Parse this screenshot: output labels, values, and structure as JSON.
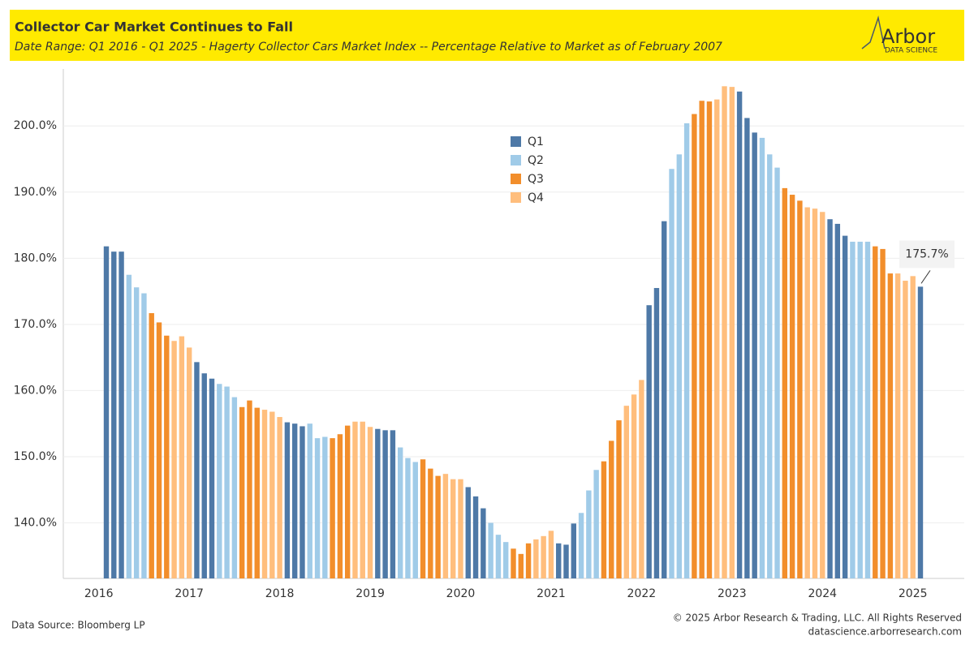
{
  "chart_data": {
    "type": "bar",
    "title": "Collector Car Market Continues to Fall",
    "subtitle": "Date Range: Q1 2016 - Q1 2025 - Hagerty Collector Cars Market Index -- Percentage Relative to Market as of February 2007",
    "categories": [
      "2016",
      null,
      null,
      null,
      null,
      null,
      null,
      null,
      null,
      null,
      null,
      null,
      "2017",
      null,
      null,
      null,
      null,
      null,
      null,
      null,
      null,
      null,
      null,
      null,
      "2018",
      null,
      null,
      null,
      null,
      null,
      null,
      null,
      null,
      null,
      null,
      null,
      "2019",
      null,
      null,
      null,
      null,
      null,
      null,
      null,
      null,
      null,
      null,
      null,
      "2020",
      null,
      null,
      null,
      null,
      null,
      null,
      null,
      null,
      null,
      null,
      null,
      "2021",
      null,
      null,
      null,
      null,
      null,
      null,
      null,
      null,
      null,
      null,
      null,
      "2022",
      null,
      null,
      null,
      null,
      null,
      null,
      null,
      null,
      null,
      null,
      null,
      "2023",
      null,
      null,
      null,
      null,
      null,
      null,
      null,
      null,
      null,
      null,
      null,
      "2024",
      null,
      null,
      null,
      null,
      null,
      null,
      null,
      null,
      null,
      null,
      null,
      "2025"
    ],
    "series": [
      {
        "name": "Q1",
        "color": "#4e79a7",
        "values": [
          181.8,
          181.0,
          181.0,
          null,
          null,
          null,
          null,
          null,
          null,
          null,
          null,
          null,
          164.3,
          162.6,
          161.8,
          null,
          null,
          null,
          null,
          null,
          null,
          null,
          null,
          null,
          155.2,
          155.0,
          154.6,
          null,
          null,
          null,
          null,
          null,
          null,
          null,
          null,
          null,
          154.2,
          154.0,
          154.0,
          null,
          null,
          null,
          null,
          null,
          null,
          null,
          null,
          null,
          145.4,
          144.0,
          142.2,
          null,
          null,
          null,
          null,
          null,
          null,
          null,
          null,
          null,
          136.9,
          136.7,
          139.9,
          null,
          null,
          null,
          null,
          null,
          null,
          null,
          null,
          null,
          172.9,
          175.5,
          185.6,
          null,
          null,
          null,
          null,
          null,
          null,
          null,
          null,
          null,
          205.2,
          201.2,
          199.0,
          null,
          null,
          null,
          null,
          null,
          null,
          null,
          null,
          null,
          185.9,
          185.2,
          183.4,
          null,
          null,
          null,
          null,
          null,
          null,
          null,
          null,
          null,
          175.7
        ],
        "value_labels": [
          null,
          null,
          null,
          null,
          null,
          null,
          null,
          null,
          null,
          null,
          null,
          null,
          null,
          null,
          null,
          null,
          null,
          null,
          null,
          null,
          null,
          null,
          null,
          null,
          null,
          null,
          null,
          null,
          null,
          null,
          null,
          null,
          null,
          null,
          null,
          null,
          null,
          null,
          null,
          null,
          null,
          null,
          null,
          null,
          null,
          null,
          null,
          null,
          null,
          null,
          null,
          null,
          null,
          null,
          null,
          null,
          null,
          null,
          null,
          null,
          null,
          null,
          null,
          null,
          null,
          null,
          null,
          null,
          null,
          null,
          null,
          null,
          null,
          null,
          null,
          null,
          null,
          null,
          null,
          null,
          null,
          null,
          null,
          null,
          null,
          null,
          null,
          null,
          null,
          null,
          null,
          null,
          null,
          null,
          null,
          null,
          null,
          null,
          null,
          null,
          null,
          null,
          null,
          null,
          null,
          null,
          null,
          null,
          "175.7%"
        ]
      },
      {
        "name": "Q2",
        "color": "#a0cbe8",
        "values": [
          null,
          null,
          null,
          177.5,
          175.6,
          174.7,
          null,
          null,
          null,
          null,
          null,
          null,
          null,
          null,
          null,
          161.0,
          160.6,
          159.0,
          null,
          null,
          null,
          null,
          null,
          null,
          null,
          null,
          null,
          155.0,
          152.8,
          153.0,
          null,
          null,
          null,
          null,
          null,
          null,
          null,
          null,
          null,
          151.4,
          149.8,
          149.2,
          null,
          null,
          null,
          null,
          null,
          null,
          null,
          null,
          null,
          140.0,
          138.2,
          137.1,
          null,
          null,
          null,
          null,
          null,
          null,
          null,
          null,
          null,
          141.5,
          144.9,
          148.0,
          null,
          null,
          null,
          null,
          null,
          null,
          null,
          null,
          null,
          193.5,
          195.7,
          200.4,
          null,
          null,
          null,
          null,
          null,
          null,
          null,
          null,
          null,
          198.2,
          195.7,
          193.7,
          null,
          null,
          null,
          null,
          null,
          null,
          null,
          null,
          null,
          182.5,
          182.5,
          182.5,
          null,
          null,
          null,
          null,
          null,
          null,
          null
        ]
      },
      {
        "name": "Q3",
        "color": "#f28e2b",
        "values": [
          null,
          null,
          null,
          null,
          null,
          null,
          171.7,
          170.3,
          168.3,
          null,
          null,
          null,
          null,
          null,
          null,
          null,
          null,
          null,
          157.5,
          158.5,
          157.4,
          null,
          null,
          null,
          null,
          null,
          null,
          null,
          null,
          null,
          152.8,
          153.4,
          154.7,
          null,
          null,
          null,
          null,
          null,
          null,
          null,
          null,
          null,
          149.6,
          148.2,
          147.1,
          null,
          null,
          null,
          null,
          null,
          null,
          null,
          null,
          null,
          136.1,
          135.3,
          136.9,
          null,
          null,
          null,
          null,
          null,
          null,
          null,
          null,
          null,
          149.3,
          152.4,
          155.5,
          null,
          null,
          null,
          null,
          null,
          null,
          null,
          null,
          null,
          201.8,
          203.8,
          203.7,
          null,
          null,
          null,
          null,
          null,
          null,
          null,
          null,
          null,
          190.6,
          189.6,
          188.7,
          null,
          null,
          null,
          null,
          null,
          null,
          null,
          null,
          null,
          181.8,
          181.4,
          177.7,
          null,
          null,
          null,
          null
        ]
      },
      {
        "name": "Q4",
        "color": "#ffbe7d",
        "values": [
          null,
          null,
          null,
          null,
          null,
          null,
          null,
          null,
          null,
          167.5,
          168.2,
          166.5,
          null,
          null,
          null,
          null,
          null,
          null,
          null,
          null,
          null,
          157.1,
          156.8,
          156.0,
          null,
          null,
          null,
          null,
          null,
          null,
          null,
          null,
          null,
          155.3,
          155.3,
          154.5,
          null,
          null,
          null,
          null,
          null,
          null,
          null,
          null,
          null,
          147.4,
          146.6,
          146.6,
          null,
          null,
          null,
          null,
          null,
          null,
          null,
          null,
          null,
          137.5,
          138.0,
          138.8,
          null,
          null,
          null,
          null,
          null,
          null,
          null,
          null,
          null,
          157.7,
          159.4,
          161.6,
          null,
          null,
          null,
          null,
          null,
          null,
          null,
          null,
          null,
          204.0,
          206.0,
          205.9,
          null,
          null,
          null,
          null,
          null,
          null,
          null,
          null,
          null,
          187.7,
          187.5,
          187.0,
          null,
          null,
          null,
          null,
          null,
          null,
          null,
          null,
          null,
          177.7,
          176.6,
          177.3,
          null
        ]
      }
    ],
    "ylim": [
      131.6,
      208
    ],
    "yticks": [
      {
        "value": 140,
        "label": "140.0%"
      },
      {
        "value": 150,
        "label": "150.0%"
      },
      {
        "value": 160,
        "label": "160.0%"
      },
      {
        "value": 170,
        "label": "170.0%"
      },
      {
        "value": 180,
        "label": "180.0%"
      },
      {
        "value": 190,
        "label": "190.0%"
      },
      {
        "value": 200,
        "label": "200.0%"
      }
    ],
    "grid": true,
    "legend": "top"
  },
  "header": {
    "logo": "Arbor",
    "logo_sub": "DATA SCIENCE"
  },
  "footer": {
    "source": "Data Source: Bloomberg LP",
    "copyright": "© 2025 Arbor Research & Trading, LLC. All Rights Reserved",
    "site": "datascience.arborresearch.com"
  }
}
